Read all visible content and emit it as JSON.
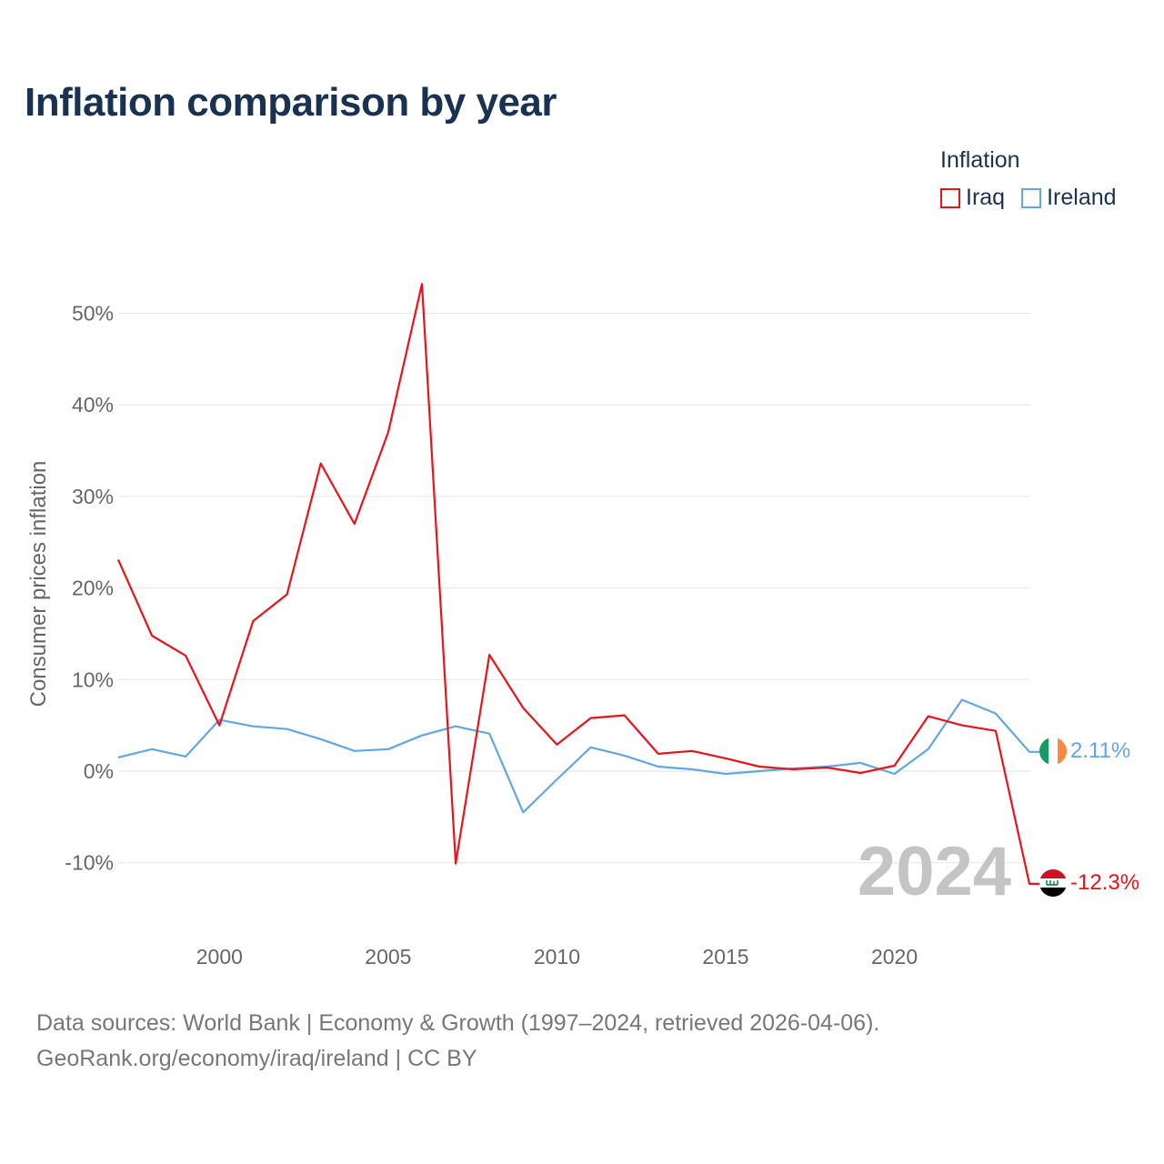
{
  "title": "Inflation comparison by year",
  "legend": {
    "title": "Inflation",
    "items": [
      {
        "label": "Iraq",
        "color": "#e8141a"
      },
      {
        "label": "Ireland",
        "color": "#62a6e4"
      }
    ]
  },
  "chart_data": {
    "type": "line",
    "title": "Inflation comparison by year",
    "xlabel": "",
    "ylabel": "Consumer prices inflation",
    "x": [
      1997,
      1998,
      1999,
      2000,
      2001,
      2002,
      2003,
      2004,
      2005,
      2006,
      2007,
      2008,
      2009,
      2010,
      2011,
      2012,
      2013,
      2014,
      2015,
      2016,
      2017,
      2018,
      2019,
      2020,
      2021,
      2022,
      2023,
      2024
    ],
    "xlim": [
      1997,
      2024
    ],
    "ylim": [
      -14,
      55
    ],
    "x_ticks": [
      2000,
      2005,
      2010,
      2015,
      2020
    ],
    "x_tick_labels": [
      "2000",
      "2005",
      "2010",
      "2015",
      "2020"
    ],
    "y_ticks": [
      -10,
      0,
      10,
      20,
      30,
      40,
      50
    ],
    "y_tick_labels": [
      "-10%",
      "0%",
      "10%",
      "20%",
      "30%",
      "40%",
      "50%"
    ],
    "grid": true,
    "legend_position": "top-right",
    "series": [
      {
        "name": "Iraq",
        "color": "#e8141a",
        "values": [
          23.1,
          14.8,
          12.6,
          5.0,
          16.4,
          19.3,
          33.6,
          27.0,
          37.0,
          53.2,
          -10.1,
          12.7,
          6.9,
          2.9,
          5.8,
          6.1,
          1.9,
          2.2,
          1.4,
          0.5,
          0.2,
          0.4,
          -0.2,
          0.6,
          6.0,
          5.0,
          4.4,
          -12.3
        ],
        "end_label": "-12.3%",
        "flag": "iraq-flag-icon"
      },
      {
        "name": "Ireland",
        "color": "#62a6e4",
        "values": [
          1.5,
          2.4,
          1.6,
          5.6,
          4.9,
          4.6,
          3.5,
          2.2,
          2.4,
          3.9,
          4.9,
          4.1,
          -4.5,
          -0.9,
          2.6,
          1.7,
          0.5,
          0.2,
          -0.3,
          0.0,
          0.3,
          0.5,
          0.9,
          -0.3,
          2.4,
          7.8,
          6.3,
          2.11
        ],
        "end_label": "2.11%",
        "flag": "ireland-flag-icon"
      }
    ],
    "annotation": "2024"
  },
  "footer": {
    "line1": "Data sources: World Bank | Economy & Growth (1997–2024, retrieved 2026-04-06).",
    "line2": "GeoRank.org/economy/iraq/ireland | CC BY"
  }
}
